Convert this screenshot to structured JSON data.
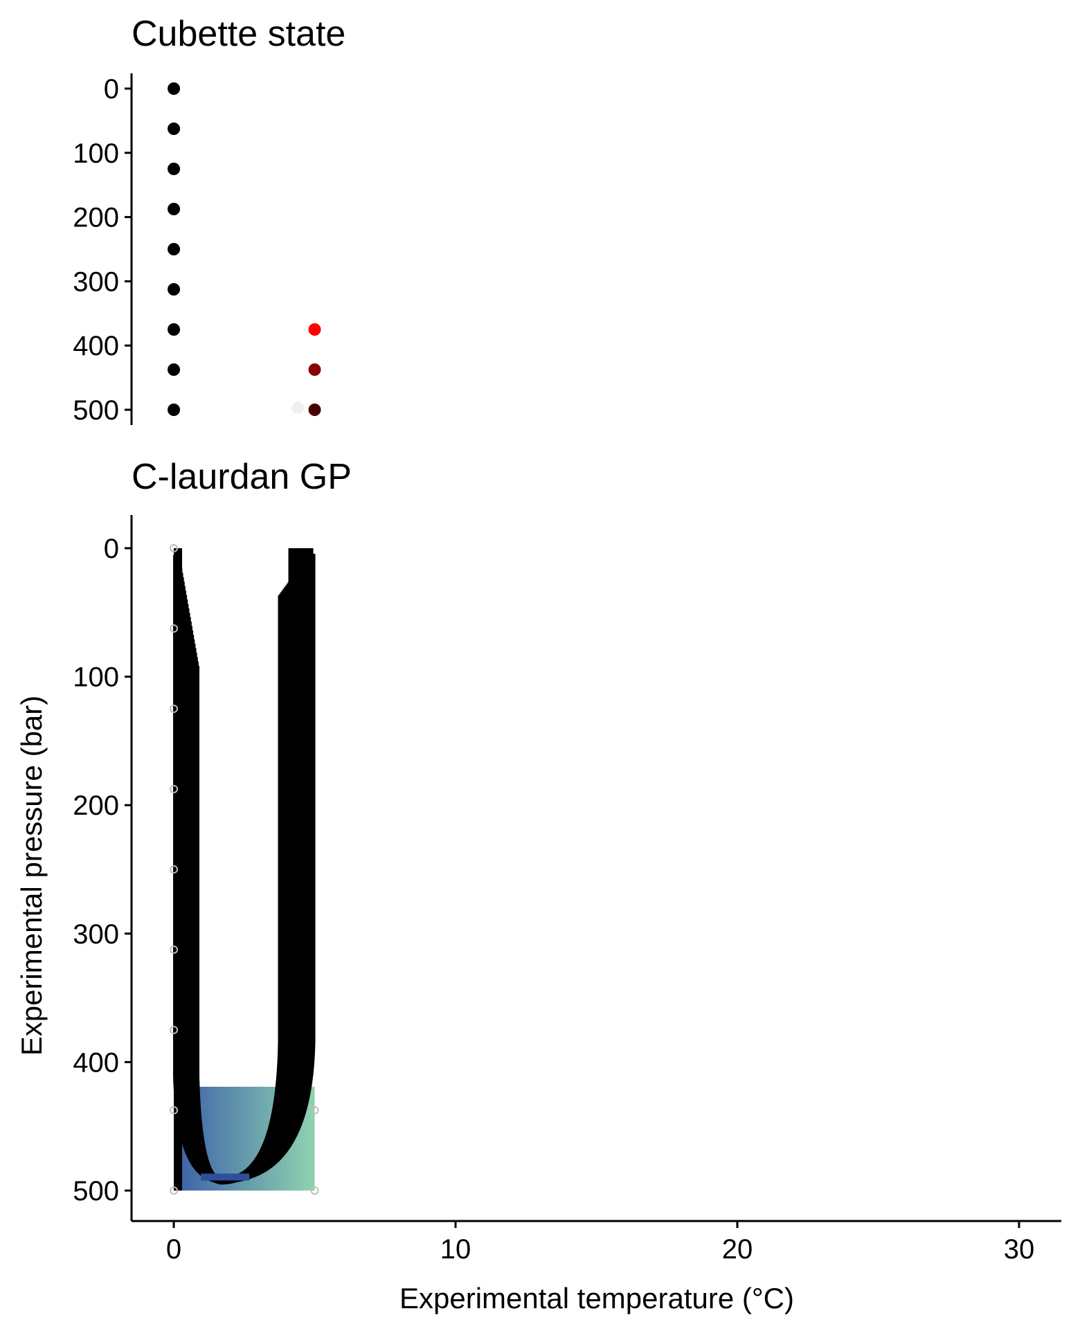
{
  "colors": {
    "cubette_points": [
      "#000000",
      "#ff0000",
      "#8b0000",
      "#4a0000",
      "#f0f0f0"
    ],
    "contour_fill_low": "#3b5fa8",
    "contour_fill_high": "#8fd3b0",
    "contour_line": "#000000",
    "hollow_point": "#bdbdbd"
  },
  "chart_data": [
    {
      "type": "scatter",
      "title": "Cubette state",
      "xlabel": "",
      "ylabel": "",
      "ylim": [
        0,
        500
      ],
      "y_reversed": true,
      "yticks": [
        "0",
        "100",
        "200",
        "300",
        "400",
        "500"
      ],
      "x_axis_shared_with": "C-laurdan GP",
      "grid": false,
      "points": [
        {
          "x": 0,
          "y": 0,
          "color": "#000000"
        },
        {
          "x": 0,
          "y": 62.5,
          "color": "#000000"
        },
        {
          "x": 0,
          "y": 125,
          "color": "#000000"
        },
        {
          "x": 0,
          "y": 187.5,
          "color": "#000000"
        },
        {
          "x": 0,
          "y": 250,
          "color": "#000000"
        },
        {
          "x": 0,
          "y": 312.5,
          "color": "#000000"
        },
        {
          "x": 0,
          "y": 375,
          "color": "#000000"
        },
        {
          "x": 0,
          "y": 437.5,
          "color": "#000000"
        },
        {
          "x": 0,
          "y": 500,
          "color": "#000000"
        },
        {
          "x": 4.4,
          "y": 497,
          "color": "#f0f0f0"
        },
        {
          "x": 5,
          "y": 375,
          "color": "#ff0000"
        },
        {
          "x": 5,
          "y": 437.5,
          "color": "#8b0000"
        },
        {
          "x": 5,
          "y": 500,
          "color": "#4a0000"
        }
      ]
    },
    {
      "type": "area",
      "subtype": "contour",
      "title": "C-laurdan GP",
      "xlabel": "Experimental temperature (°C)",
      "ylabel": "Experimental pressure (bar)",
      "xlim": [
        -1.5,
        31.5
      ],
      "ylim": [
        -25,
        525
      ],
      "y_reversed": true,
      "xticks": [
        "0",
        "10",
        "20",
        "30"
      ],
      "yticks": [
        "0",
        "100",
        "200",
        "300",
        "400",
        "500"
      ],
      "grid": false,
      "contour_region": {
        "x_min": 0,
        "x_max": 5,
        "y_min": 0,
        "y_max": 500,
        "trough_x": 1.7,
        "trough_y": 490
      },
      "sample_points": [
        {
          "x": 0,
          "y": 0
        },
        {
          "x": 0,
          "y": 62.5
        },
        {
          "x": 0,
          "y": 125
        },
        {
          "x": 0,
          "y": 187.5
        },
        {
          "x": 0,
          "y": 250
        },
        {
          "x": 0,
          "y": 312.5
        },
        {
          "x": 0,
          "y": 375
        },
        {
          "x": 0,
          "y": 437.5
        },
        {
          "x": 0,
          "y": 500
        },
        {
          "x": 5,
          "y": 437.5
        },
        {
          "x": 5,
          "y": 500
        }
      ]
    }
  ]
}
